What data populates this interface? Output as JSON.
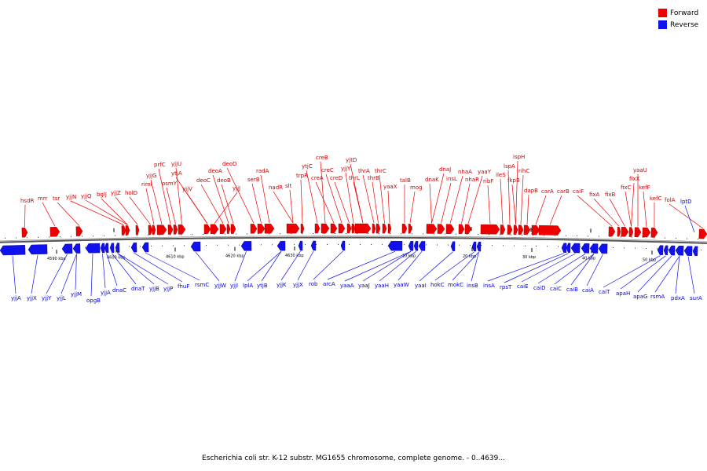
{
  "legend": {
    "forward": {
      "label": "Forward",
      "color": "#ee0000"
    },
    "reverse": {
      "label": "Reverse",
      "color": "#1111ee"
    }
  },
  "caption": "Escherichia coli str. K-12 substr. MG1655 chromosome, complete genome. - 0..4639...",
  "ticks": [
    "4590 kbp",
    "4600 kbp",
    "4610 kbp",
    "4620 kbp",
    "4630 kbp",
    "10 kbp",
    "20 kbp",
    "30 kbp",
    "40 kbp",
    "50 kbp"
  ],
  "forward_genes": [
    "hsdR",
    "mrr",
    "tsr",
    "yjjN",
    "yjjQ",
    "bglJ",
    "yjjZ",
    "holD",
    "rimI",
    "yjjG",
    "prfC",
    "osmY",
    "yjjU",
    "ytjA",
    "yjjV",
    "yjjJ",
    "deoC",
    "deoA",
    "deoB",
    "deoD",
    "serB",
    "radA",
    "nadR",
    "slt",
    "trpR",
    "ytjC",
    "creB",
    "creA",
    "creC",
    "creD",
    "yjjY",
    "yjtD",
    "thrL",
    "thrA",
    "thrB",
    "thrC",
    "yaaX",
    "talB",
    "mog",
    "dnaK",
    "dnaJ",
    "insL",
    "nhaA",
    "nhaR",
    "yaaY",
    "ribF",
    "ileS",
    "lspA",
    "fkpB",
    "ispH",
    "rihC",
    "dapB",
    "carA",
    "carB",
    "caiF",
    "fixA",
    "fixB",
    "fixC",
    "fixX",
    "yaaU",
    "kefF",
    "kefC",
    "folA"
  ],
  "reverse_genes": [
    "yjjA",
    "yjjX",
    "yjjY",
    "yjjL",
    "yjjM",
    "opgB",
    "yjjA",
    "dnaC",
    "dnaT",
    "yjjB",
    "yjjP",
    "fhuF",
    "rsmC",
    "yjjW",
    "yjjI",
    "lplA",
    "ytjB",
    "yjjK",
    "yjjX",
    "rob",
    "arcA",
    "yaaA",
    "yaaJ",
    "yaaH",
    "yaaW",
    "yaaI",
    "hokC",
    "mokC",
    "insB",
    "insA",
    "rpsT",
    "caiE",
    "caiD",
    "caiC",
    "caiB",
    "caiA",
    "caiT",
    "apaH",
    "apaG",
    "rsmA",
    "pdxA",
    "surA",
    "lptD"
  ]
}
